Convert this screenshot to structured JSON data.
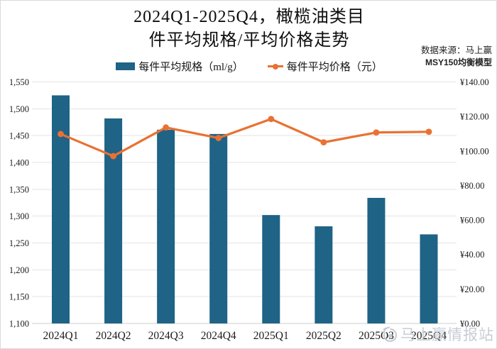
{
  "title": {
    "line1": "2024Q1-2025Q4，橄榄油类目",
    "line2": "件平均规格/平均价格走势"
  },
  "source": {
    "line1": "数据来源：马上赢",
    "line2": "MSY150均衡模型"
  },
  "legend": [
    {
      "label": "每件平均规格（ml/g）",
      "marker": "bar-swatch",
      "color": "#1f6386"
    },
    {
      "label": "每件平均价格（元）",
      "marker": "line-dot-swatch",
      "color": "#e97132"
    }
  ],
  "watermark": {
    "icon": "weibo-icon",
    "text": "马上赢情报站",
    "color": "#c5cbd3"
  },
  "colors": {
    "bar": "#1f6386",
    "line": "#e97132",
    "gridline": "#e3e3e3",
    "baseline": "#cfcfcf"
  },
  "chart_data": {
    "type": "bar",
    "subtype": "combo: bars (left axis) + line with markers (right axis)",
    "title": "2024Q1-2025Q4，橄榄油类目件平均规格/平均价格走势",
    "categories": [
      "2024Q1",
      "2024Q2",
      "2024Q3",
      "2024Q4",
      "2025Q1",
      "2025Q2",
      "2025Q3",
      "2025Q4"
    ],
    "series": [
      {
        "name": "每件平均规格（ml/g）",
        "type": "bar",
        "axis": "left",
        "color": "#1f6386",
        "values": [
          1525,
          1482,
          1461,
          1453,
          1302,
          1281,
          1334,
          1266
        ]
      },
      {
        "name": "每件平均价格（元）",
        "type": "line",
        "axis": "right",
        "color": "#e97132",
        "values": [
          109.8,
          97.0,
          113.6,
          107.5,
          118.5,
          105.0,
          110.7,
          111.1
        ]
      }
    ],
    "left_axis": {
      "min": 1100,
      "max": 1550,
      "step": 50,
      "ticks": [
        "1,550",
        "1,500",
        "1,450",
        "1,400",
        "1,350",
        "1,300",
        "1,250",
        "1,200",
        "1,150",
        "1,100"
      ]
    },
    "right_axis": {
      "min": 0,
      "max": 140,
      "step": 20,
      "ticks": [
        "¥140.00",
        "¥120.00",
        "¥100.00",
        "¥80.00",
        "¥60.00",
        "¥40.00",
        "¥20.00",
        "¥0.00"
      ]
    },
    "grid": true,
    "legend_position": "top"
  }
}
